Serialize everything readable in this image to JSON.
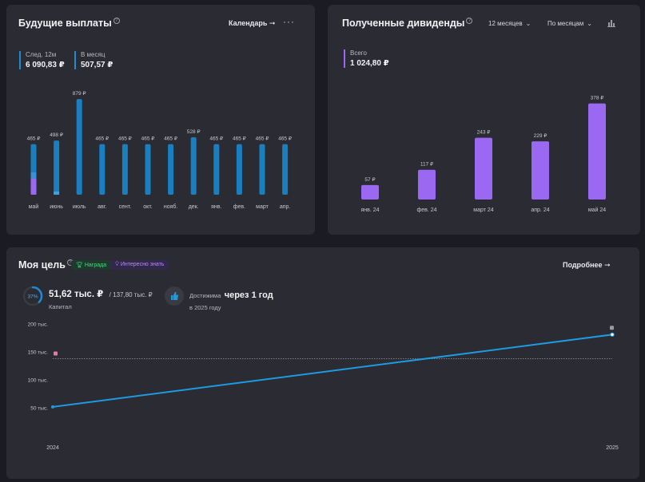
{
  "future": {
    "title": "Будущие выплаты",
    "action_label": "Календарь",
    "stats": [
      {
        "label": "След. 12м",
        "value": "6 090,83 ₽"
      },
      {
        "label": "В месяц",
        "value": "507,57 ₽"
      }
    ]
  },
  "dividends": {
    "title": "Полученные дивиденды",
    "period_label": "12 месяцев",
    "group_label": "По месяцам",
    "total_label": "Всего",
    "total_value": "1 024,80 ₽"
  },
  "goal": {
    "title": "Моя цель",
    "chip_reward": "Награда",
    "chip_interesting": "Интересно знать",
    "more_label": "Подробнее",
    "progress_percent": "37%",
    "progress_fraction": 0.37,
    "capital_value": "51,62 тыс. ₽",
    "capital_target": "/ 137,80 тыс. ₽",
    "capital_label": "Капитал",
    "reach_prefix": "Достижима",
    "reach_value": "через 1 год",
    "reach_sub": "в 2025 году"
  },
  "chart_data": [
    {
      "type": "bar",
      "title": "Будущие выплаты",
      "categories": [
        "май",
        "июнь",
        "июль",
        "авг.",
        "сент.",
        "окт.",
        "нояб.",
        "дек.",
        "янв.",
        "фев.",
        "март",
        "апр."
      ],
      "values": [
        465,
        498,
        879,
        465,
        465,
        465,
        465,
        528,
        465,
        465,
        465,
        465
      ],
      "labels": [
        "465 ₽",
        "498 ₽",
        "879 ₽",
        "465 ₽",
        "465 ₽",
        "465 ₽",
        "465 ₽",
        "528 ₽",
        "465 ₽",
        "465 ₽",
        "465 ₽",
        "465 ₽"
      ],
      "ylim": [
        0,
        880
      ],
      "color": "#1a7fbf",
      "highlight_color": "#9b68f2"
    },
    {
      "type": "bar",
      "title": "Полученные дивиденды",
      "categories": [
        "янв. 24",
        "фев. 24",
        "март 24",
        "апр. 24",
        "май 24"
      ],
      "values": [
        57,
        117,
        243,
        229,
        378
      ],
      "labels": [
        "57 ₽",
        "117 ₽",
        "243 ₽",
        "229 ₽",
        "378 ₽"
      ],
      "ylim": [
        0,
        380
      ],
      "color": "#9b68f2"
    },
    {
      "type": "line",
      "title": "Моя цель",
      "x": [
        "2024",
        "2025"
      ],
      "y": [
        51.62,
        181
      ],
      "y_ticks": [
        50,
        100,
        150,
        200
      ],
      "y_tick_labels": [
        "50 тыс.",
        "100 тыс.",
        "150 тыс.",
        "200 тыс."
      ],
      "ylim": [
        50,
        200
      ],
      "target": 137.8,
      "color": "#1e9be0"
    }
  ]
}
